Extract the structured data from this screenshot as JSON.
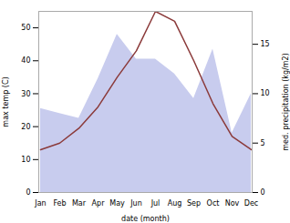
{
  "chart_data": {
    "type": "line",
    "xlabel": "date (month)",
    "ylabel": "max temp (C)",
    "y2label": "med. precipitation (kg/m2)",
    "categories": [
      "Jan",
      "Feb",
      "Mar",
      "Apr",
      "May",
      "Jun",
      "Jul",
      "Aug",
      "Sep",
      "Oct",
      "Nov",
      "Dec"
    ],
    "series": [
      {
        "type": "area",
        "axis": "y2",
        "color": "#c8ccee",
        "values": [
          8.5,
          8.0,
          7.5,
          11.5,
          16.0,
          13.5,
          13.5,
          12.0,
          9.5,
          14.5,
          6.0,
          10.0
        ]
      },
      {
        "type": "line",
        "color": "#8B3A3A",
        "values": [
          13.0,
          15.0,
          19.5,
          26.0,
          35.0,
          43.0,
          55.0,
          52.0,
          40.0,
          27.0,
          17.0,
          13.0
        ]
      }
    ],
    "ylim": [
      0,
      55
    ],
    "yticks": [
      0,
      10,
      20,
      30,
      40,
      50
    ],
    "y2lim": [
      0,
      18.33
    ],
    "y2ticks": [
      0,
      5,
      10,
      15
    ]
  }
}
